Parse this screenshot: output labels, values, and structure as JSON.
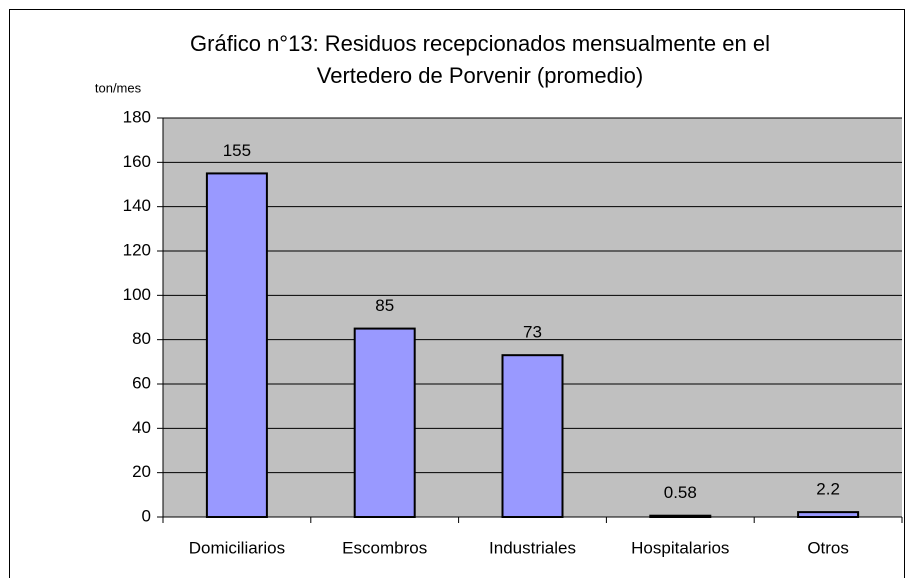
{
  "chart_data": {
    "type": "bar",
    "title": [
      "Gráfico n°13: Residuos recepcionados mensualmente en el",
      "Vertedero de Porvenir (promedio)"
    ],
    "y_label": "ton/mes",
    "categories": [
      "Domiciliarios",
      "Escombros",
      "Industriales",
      "Hospitalarios",
      "Otros"
    ],
    "values": [
      155,
      85,
      73,
      0.58,
      2.2
    ],
    "color": "#9999ff",
    "ylim": [
      0,
      180
    ],
    "yticks": [
      0,
      20,
      40,
      60,
      80,
      100,
      120,
      140,
      160,
      180
    ],
    "grid": true
  }
}
